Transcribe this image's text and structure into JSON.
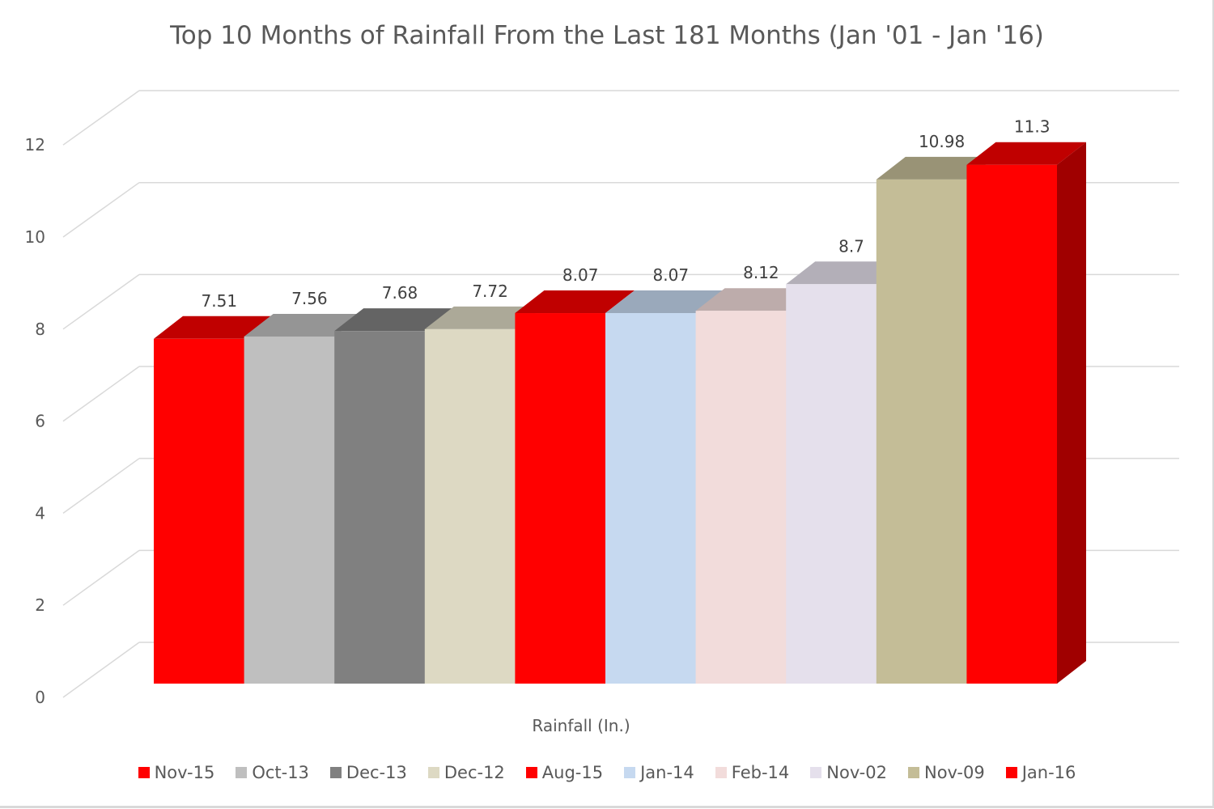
{
  "chart_data": {
    "type": "bar",
    "title": "Top 10 Months of Rainfall From the Last 181 Months (Jan '01 - Jan '16)",
    "xlabel": "Rainfall (In.)",
    "ylabel": "",
    "ylim": [
      0,
      12
    ],
    "yticks": [
      0,
      2,
      4,
      6,
      8,
      10,
      12
    ],
    "grid": true,
    "legend_position": "bottom",
    "series": [
      {
        "name": "Nov-15",
        "value": 7.51,
        "label": "7.51",
        "color": "#ff0000"
      },
      {
        "name": "Oct-13",
        "value": 7.56,
        "label": "7.56",
        "color": "#bfbfbf"
      },
      {
        "name": "Dec-13",
        "value": 7.68,
        "label": "7.68",
        "color": "#808080"
      },
      {
        "name": "Dec-12",
        "value": 7.72,
        "label": "7.72",
        "color": "#ddd9c3"
      },
      {
        "name": "Aug-15",
        "value": 8.07,
        "label": "8.07",
        "color": "#ff0000"
      },
      {
        "name": "Jan-14",
        "value": 8.07,
        "label": "8.07",
        "color": "#c6d9f0"
      },
      {
        "name": "Feb-14",
        "value": 8.12,
        "label": "8.12",
        "color": "#f2dcdb"
      },
      {
        "name": "Nov-02",
        "value": 8.7,
        "label": "8.7",
        "color": "#e5e0ec"
      },
      {
        "name": "Nov-09",
        "value": 10.98,
        "label": "10.98",
        "color": "#c4bd97"
      },
      {
        "name": "Jan-16",
        "value": 11.3,
        "label": "11.3",
        "color": "#ff0000"
      }
    ]
  }
}
